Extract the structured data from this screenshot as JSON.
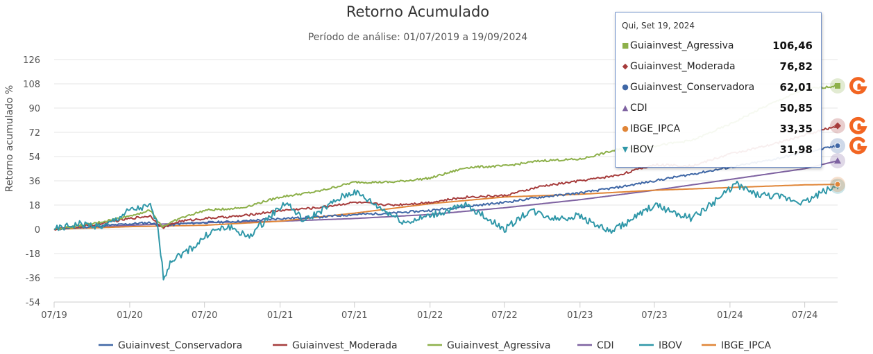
{
  "chart_data": {
    "type": "line",
    "title": "Retorno Acumulado",
    "subtitle": "Período de análise: 01/07/2019 a 19/09/2024",
    "ylabel": "Retorno acumulado %",
    "xlabel": "",
    "ylim": [
      -54,
      126
    ],
    "yticks": [
      126,
      108,
      90,
      72,
      54,
      36,
      18,
      0,
      -18,
      -36,
      -54
    ],
    "xticks": [
      "07/19",
      "01/20",
      "07/20",
      "01/21",
      "07/21",
      "01/22",
      "07/22",
      "01/23",
      "07/23",
      "01/24",
      "07/24"
    ],
    "xrange": [
      "2019-07-01",
      "2024-09-19"
    ],
    "grid": true,
    "legend_position": "bottom",
    "series": [
      {
        "name": "Guiainvest_Conservadora",
        "color": "#3f67a6",
        "marker": "circle",
        "points": [
          [
            "2019-07-01",
            0
          ],
          [
            "2019-10-01",
            2
          ],
          [
            "2020-01-01",
            4
          ],
          [
            "2020-02-20",
            5
          ],
          [
            "2020-03-20",
            2
          ],
          [
            "2020-05-01",
            4
          ],
          [
            "2020-07-01",
            5
          ],
          [
            "2020-10-01",
            6
          ],
          [
            "2021-01-01",
            8
          ],
          [
            "2021-04-01",
            9
          ],
          [
            "2021-07-01",
            11
          ],
          [
            "2021-10-01",
            12
          ],
          [
            "2022-01-01",
            14
          ],
          [
            "2022-04-01",
            17
          ],
          [
            "2022-07-01",
            20
          ],
          [
            "2022-10-01",
            24
          ],
          [
            "2023-01-01",
            27
          ],
          [
            "2023-04-01",
            31
          ],
          [
            "2023-07-01",
            36
          ],
          [
            "2023-10-01",
            41
          ],
          [
            "2024-01-01",
            46
          ],
          [
            "2024-04-01",
            51
          ],
          [
            "2024-07-01",
            57
          ],
          [
            "2024-09-19",
            62.01
          ]
        ]
      },
      {
        "name": "Guiainvest_Moderada",
        "color": "#a63c3c",
        "marker": "diamond",
        "points": [
          [
            "2019-07-01",
            0
          ],
          [
            "2019-10-01",
            3
          ],
          [
            "2020-01-01",
            8
          ],
          [
            "2020-02-20",
            10
          ],
          [
            "2020-03-20",
            1
          ],
          [
            "2020-05-01",
            6
          ],
          [
            "2020-07-01",
            8
          ],
          [
            "2020-10-01",
            10
          ],
          [
            "2021-01-01",
            14
          ],
          [
            "2021-04-01",
            16
          ],
          [
            "2021-07-01",
            20
          ],
          [
            "2021-10-01",
            18
          ],
          [
            "2022-01-01",
            20
          ],
          [
            "2022-04-01",
            24
          ],
          [
            "2022-07-01",
            25
          ],
          [
            "2022-10-01",
            32
          ],
          [
            "2023-01-01",
            36
          ],
          [
            "2023-04-01",
            40
          ],
          [
            "2023-07-01",
            48
          ],
          [
            "2023-10-01",
            47
          ],
          [
            "2024-01-01",
            56
          ],
          [
            "2024-04-01",
            62
          ],
          [
            "2024-07-01",
            70
          ],
          [
            "2024-09-19",
            76.82
          ]
        ]
      },
      {
        "name": "Guiainvest_Agressiva",
        "color": "#8db04a",
        "marker": "square",
        "points": [
          [
            "2019-07-01",
            0
          ],
          [
            "2019-10-01",
            4
          ],
          [
            "2020-01-01",
            10
          ],
          [
            "2020-02-20",
            14
          ],
          [
            "2020-03-20",
            2
          ],
          [
            "2020-05-01",
            8
          ],
          [
            "2020-07-01",
            14
          ],
          [
            "2020-10-01",
            16
          ],
          [
            "2021-01-01",
            24
          ],
          [
            "2021-04-01",
            28
          ],
          [
            "2021-07-01",
            35
          ],
          [
            "2021-10-01",
            35
          ],
          [
            "2022-01-01",
            38
          ],
          [
            "2022-04-01",
            46
          ],
          [
            "2022-07-01",
            47
          ],
          [
            "2022-10-01",
            51
          ],
          [
            "2023-01-01",
            52
          ],
          [
            "2023-04-01",
            59
          ],
          [
            "2023-07-01",
            62
          ],
          [
            "2023-10-01",
            66
          ],
          [
            "2024-01-01",
            78
          ],
          [
            "2024-04-01",
            92
          ],
          [
            "2024-07-01",
            104
          ],
          [
            "2024-09-19",
            106.46
          ]
        ]
      },
      {
        "name": "CDI",
        "color": "#7e62a1",
        "marker": "triangle",
        "points": [
          [
            "2019-07-01",
            0
          ],
          [
            "2020-01-01",
            3
          ],
          [
            "2020-07-01",
            5
          ],
          [
            "2021-01-01",
            6
          ],
          [
            "2021-07-01",
            8
          ],
          [
            "2022-01-01",
            11
          ],
          [
            "2022-07-01",
            16
          ],
          [
            "2023-01-01",
            22
          ],
          [
            "2023-07-01",
            29
          ],
          [
            "2024-01-01",
            37
          ],
          [
            "2024-07-01",
            45
          ],
          [
            "2024-09-19",
            50.85
          ]
        ]
      },
      {
        "name": "IBOV",
        "color": "#2f97a8",
        "marker": "triangle-down",
        "points": [
          [
            "2019-07-01",
            0
          ],
          [
            "2019-09-01",
            4
          ],
          [
            "2019-11-01",
            2
          ],
          [
            "2020-01-01",
            14
          ],
          [
            "2020-02-20",
            17
          ],
          [
            "2020-03-10",
            2
          ],
          [
            "2020-03-23",
            -36
          ],
          [
            "2020-04-15",
            -22
          ],
          [
            "2020-06-01",
            -14
          ],
          [
            "2020-07-15",
            -2
          ],
          [
            "2020-09-01",
            2
          ],
          [
            "2020-10-15",
            -6
          ],
          [
            "2020-12-01",
            8
          ],
          [
            "2021-01-15",
            20
          ],
          [
            "2021-03-01",
            6
          ],
          [
            "2021-06-01",
            24
          ],
          [
            "2021-07-01",
            28
          ],
          [
            "2021-09-01",
            16
          ],
          [
            "2021-11-01",
            5
          ],
          [
            "2022-01-01",
            10
          ],
          [
            "2022-04-01",
            18
          ],
          [
            "2022-07-01",
            0
          ],
          [
            "2022-09-01",
            14
          ],
          [
            "2022-11-01",
            8
          ],
          [
            "2023-01-01",
            10
          ],
          [
            "2023-03-15",
            -2
          ],
          [
            "2023-05-01",
            6
          ],
          [
            "2023-07-01",
            18
          ],
          [
            "2023-10-01",
            8
          ],
          [
            "2023-12-01",
            22
          ],
          [
            "2024-01-15",
            34
          ],
          [
            "2024-03-01",
            26
          ],
          [
            "2024-05-01",
            24
          ],
          [
            "2024-07-01",
            20
          ],
          [
            "2024-08-15",
            28
          ],
          [
            "2024-09-19",
            31.98
          ]
        ]
      },
      {
        "name": "IBGE_IPCA",
        "color": "#e08537",
        "marker": "circle",
        "points": [
          [
            "2019-07-01",
            0
          ],
          [
            "2020-01-01",
            2
          ],
          [
            "2020-07-01",
            3
          ],
          [
            "2021-01-01",
            6
          ],
          [
            "2021-07-01",
            12
          ],
          [
            "2022-01-01",
            19
          ],
          [
            "2022-07-01",
            24
          ],
          [
            "2023-01-01",
            26
          ],
          [
            "2023-07-01",
            29
          ],
          [
            "2024-01-01",
            31
          ],
          [
            "2024-07-01",
            33
          ],
          [
            "2024-09-19",
            33.35
          ]
        ]
      }
    ],
    "legend_order": [
      0,
      1,
      2,
      3,
      4,
      5
    ],
    "tooltip": {
      "date": "Qui, Set 19, 2024",
      "rows": [
        {
          "name": "Guiainvest_Agressiva",
          "value": "106,46",
          "color": "#8db04a",
          "symbol": "■"
        },
        {
          "name": "Guiainvest_Moderada",
          "value": "76,82",
          "color": "#a63c3c",
          "symbol": "◆"
        },
        {
          "name": "Guiainvest_Conservadora",
          "value": "62,01",
          "color": "#3f67a6",
          "symbol": "●"
        },
        {
          "name": "CDI",
          "value": "50,85",
          "color": "#7e62a1",
          "symbol": "▲"
        },
        {
          "name": "IBGE_IPCA",
          "value": "33,35",
          "color": "#e08537",
          "symbol": "●"
        },
        {
          "name": "IBOV",
          "value": "31,98",
          "color": "#2f97a8",
          "symbol": "▼"
        }
      ]
    },
    "end_icons": [
      "logo-icon",
      "logo-icon",
      "logo-icon"
    ],
    "end_icon_color": "#f26522"
  }
}
